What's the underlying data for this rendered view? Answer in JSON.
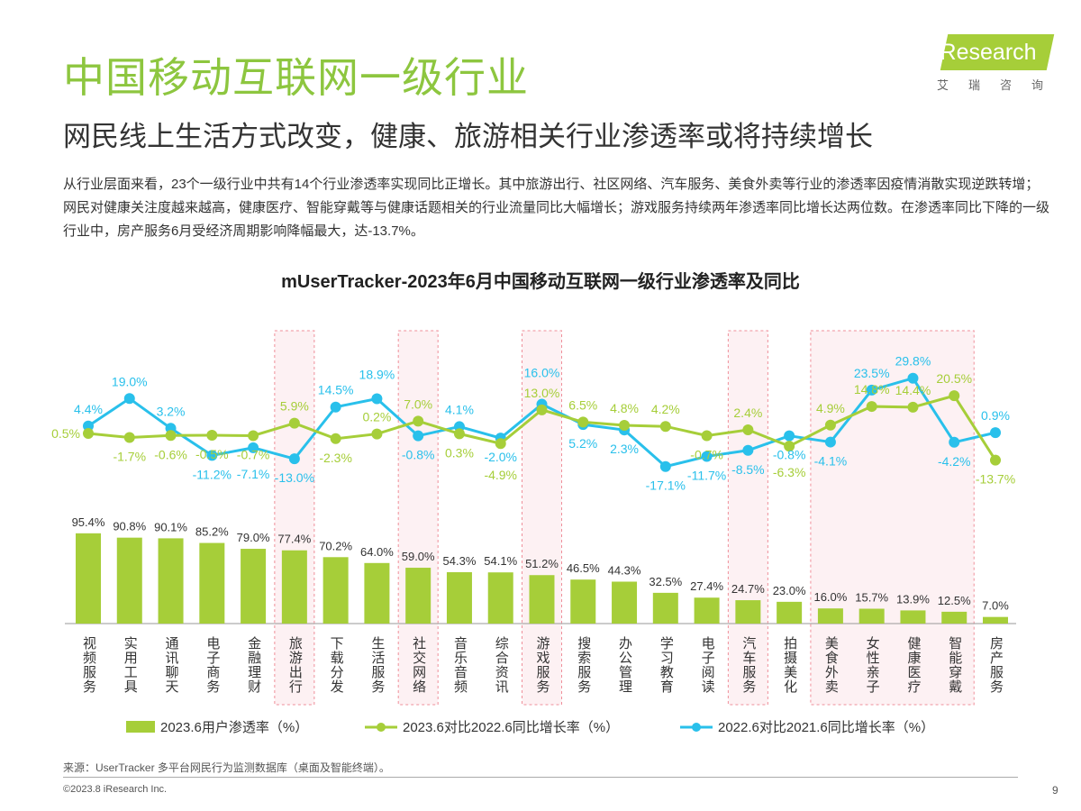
{
  "header": {
    "title": "中国移动互联网一级行业",
    "subtitle": "网民线上生活方式改变，健康、旅游相关行业渗透率或将持续增长",
    "body": "从行业层面来看，23个一级行业中共有14个行业渗透率实现同比正增长。其中旅游出行、社区网络、汽车服务、美食外卖等行业的渗透率因疫情消散实现逆跌转增；网民对健康关注度越来越高，健康医疗、智能穿戴等与健康话题相关的行业流量同比大幅增长；游戏服务持续两年渗透率同比增长达两位数。在渗透率同比下降的一级行业中，房产服务6月受经济周期影响降幅最大，达-13.7%。"
  },
  "logo": {
    "text": "iResearch",
    "cn": "艾瑞咨询"
  },
  "chart_data": {
    "type": "bar+line",
    "title": "mUserTracker-2023年6月中国移动互联网一级行业渗透率及同比",
    "categories": [
      "视频服务",
      "实用工具",
      "通讯聊天",
      "电子商务",
      "金融理财",
      "旅游出行",
      "下载分发",
      "生活服务",
      "社交网络",
      "音乐音频",
      "综合资讯",
      "游戏服务",
      "搜索服务",
      "办公管理",
      "学习教育",
      "电子阅读",
      "汽车服务",
      "拍摄美化",
      "美食外卖",
      "女性亲子",
      "健康医疗",
      "智能穿戴",
      "房产服务"
    ],
    "highlighted": [
      "旅游出行",
      "社交网络",
      "游戏服务",
      "汽车服务",
      "美食外卖",
      "女性亲子",
      "健康医疗",
      "智能穿戴"
    ],
    "series": [
      {
        "name": "2023.6用户渗透率（%）",
        "type": "bar",
        "color": "#a6ce39",
        "values": [
          95.4,
          90.8,
          90.1,
          85.2,
          79.0,
          77.4,
          70.2,
          64.0,
          59.0,
          54.3,
          54.1,
          51.2,
          46.5,
          44.3,
          32.5,
          27.4,
          24.7,
          23.0,
          16.0,
          15.7,
          13.9,
          12.5,
          7.0
        ]
      },
      {
        "name": "2023.6对比2022.6同比增长率（%）",
        "type": "line",
        "color": "#a6ce39",
        "values": [
          0.5,
          -1.7,
          -0.6,
          -0.5,
          -0.7,
          5.9,
          -2.3,
          0.2,
          7.0,
          0.3,
          -4.9,
          13.0,
          6.5,
          4.8,
          4.2,
          -0.7,
          2.4,
          -6.3,
          4.9,
          14.8,
          14.4,
          20.5,
          -13.7
        ]
      },
      {
        "name": "2022.6对比2021.6同比增长率（%）",
        "type": "line",
        "color": "#29c0eb",
        "values": [
          4.4,
          19.0,
          3.2,
          -11.2,
          -7.1,
          -13.0,
          14.5,
          18.9,
          -0.8,
          4.1,
          -2.0,
          16.0,
          5.2,
          2.3,
          -17.1,
          -11.7,
          -8.5,
          -0.8,
          -4.1,
          23.5,
          29.8,
          -4.2,
          0.9
        ]
      }
    ],
    "legend_position": "bottom",
    "grid": false
  },
  "footer": {
    "source": "来源：UserTracker 多平台网民行为监测数据库（桌面及智能终端）。",
    "copyright": "©2023.8 iResearch Inc.",
    "page": "9"
  }
}
